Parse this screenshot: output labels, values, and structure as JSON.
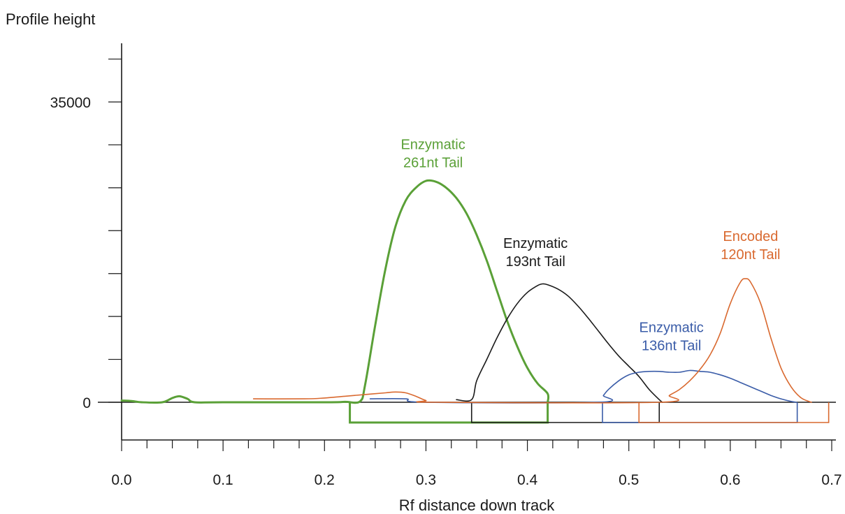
{
  "chart_data": {
    "type": "line",
    "xlabel": "Rf distance down track",
    "ylabel": "Profile height",
    "xlim": [
      0.0,
      0.7
    ],
    "ylim": [
      -4500,
      42000
    ],
    "x_ticks": [
      "0.0",
      "0.1",
      "0.2",
      "0.3",
      "0.4",
      "0.5",
      "0.6",
      "0.7"
    ],
    "y_ticks": [
      "0",
      "35000"
    ],
    "grid": false,
    "series": [
      {
        "color": "#5aa037",
        "width": 3,
        "points": [
          [
            0.0,
            200
          ],
          [
            0.01,
            150
          ],
          [
            0.02,
            0
          ],
          [
            0.04,
            0
          ],
          [
            0.05,
            500
          ],
          [
            0.057,
            700
          ],
          [
            0.065,
            400
          ],
          [
            0.072,
            0
          ],
          [
            0.1,
            0
          ],
          [
            0.2,
            0
          ],
          [
            0.22,
            50
          ],
          [
            0.235,
            100
          ],
          [
            0.24,
            2000
          ],
          [
            0.25,
            9000
          ],
          [
            0.26,
            15500
          ],
          [
            0.27,
            20500
          ],
          [
            0.28,
            23500
          ],
          [
            0.29,
            25000
          ],
          [
            0.3,
            25800
          ],
          [
            0.31,
            25700
          ],
          [
            0.32,
            25000
          ],
          [
            0.33,
            23800
          ],
          [
            0.34,
            22000
          ],
          [
            0.35,
            19500
          ],
          [
            0.36,
            16500
          ],
          [
            0.37,
            13000
          ],
          [
            0.38,
            9500
          ],
          [
            0.39,
            6500
          ],
          [
            0.4,
            4000
          ],
          [
            0.41,
            2200
          ],
          [
            0.42,
            1000
          ],
          [
            0.42,
            0
          ]
        ]
      },
      {
        "color": "#1a1a1a",
        "width": 1.6,
        "points": [
          [
            0.33,
            300
          ],
          [
            0.345,
            300
          ],
          [
            0.35,
            2500
          ],
          [
            0.36,
            5000
          ],
          [
            0.37,
            7500
          ],
          [
            0.38,
            9700
          ],
          [
            0.39,
            11500
          ],
          [
            0.4,
            12800
          ],
          [
            0.41,
            13600
          ],
          [
            0.415,
            13800
          ],
          [
            0.42,
            13700
          ],
          [
            0.43,
            13200
          ],
          [
            0.44,
            12400
          ],
          [
            0.45,
            11200
          ],
          [
            0.46,
            9800
          ],
          [
            0.47,
            8300
          ],
          [
            0.48,
            6800
          ],
          [
            0.49,
            5400
          ],
          [
            0.5,
            4200
          ],
          [
            0.51,
            3000
          ],
          [
            0.52,
            1500
          ],
          [
            0.53,
            300
          ],
          [
            0.533,
            0
          ]
        ]
      },
      {
        "color": "#3a5ca8",
        "width": 1.6,
        "points": [
          [
            0.245,
            400
          ],
          [
            0.28,
            400
          ],
          [
            0.3,
            0
          ],
          [
            0.47,
            0
          ],
          [
            0.475,
            800
          ],
          [
            0.48,
            1500
          ],
          [
            0.49,
            2500
          ],
          [
            0.5,
            3200
          ],
          [
            0.51,
            3500
          ],
          [
            0.52,
            3600
          ],
          [
            0.53,
            3600
          ],
          [
            0.54,
            3500
          ],
          [
            0.55,
            3500
          ],
          [
            0.56,
            3700
          ],
          [
            0.57,
            3600
          ],
          [
            0.58,
            3500
          ],
          [
            0.59,
            3200
          ],
          [
            0.6,
            2800
          ],
          [
            0.61,
            2300
          ],
          [
            0.62,
            1800
          ],
          [
            0.63,
            1300
          ],
          [
            0.64,
            800
          ],
          [
            0.65,
            400
          ],
          [
            0.66,
            100
          ],
          [
            0.665,
            0
          ]
        ]
      },
      {
        "color": "#d9692f",
        "width": 1.6,
        "points": [
          [
            0.13,
            400
          ],
          [
            0.18,
            400
          ],
          [
            0.2,
            500
          ],
          [
            0.22,
            700
          ],
          [
            0.24,
            900
          ],
          [
            0.26,
            1100
          ],
          [
            0.27,
            1200
          ],
          [
            0.28,
            1100
          ],
          [
            0.29,
            700
          ],
          [
            0.3,
            200
          ],
          [
            0.31,
            0
          ],
          [
            0.53,
            0
          ],
          [
            0.54,
            800
          ],
          [
            0.55,
            1500
          ],
          [
            0.56,
            2500
          ],
          [
            0.57,
            3800
          ],
          [
            0.58,
            5500
          ],
          [
            0.59,
            8000
          ],
          [
            0.6,
            11500
          ],
          [
            0.61,
            14000
          ],
          [
            0.615,
            14400
          ],
          [
            0.62,
            14000
          ],
          [
            0.63,
            11500
          ],
          [
            0.64,
            7500
          ],
          [
            0.65,
            4000
          ],
          [
            0.66,
            1800
          ],
          [
            0.67,
            500
          ],
          [
            0.68,
            0
          ]
        ]
      }
    ],
    "intervals": [
      {
        "color": "#5aa037",
        "width": 3,
        "x": [
          0.225,
          0.42
        ]
      },
      {
        "color": "#1a1a1a",
        "width": 1.6,
        "x": [
          0.345,
          0.53
        ]
      },
      {
        "color": "#3a5ca8",
        "width": 1.6,
        "x": [
          0.474,
          0.666
        ]
      },
      {
        "color": "#d9692f",
        "width": 1.6,
        "x": [
          0.51,
          0.697
        ]
      }
    ],
    "annotations": [
      {
        "color": "#5aa037",
        "x": 0.307,
        "y": 29500,
        "lines": [
          "Enzymatic",
          "261nt Tail"
        ]
      },
      {
        "color": "#1a1a1a",
        "x": 0.408,
        "y": 18000,
        "lines": [
          "Enzymatic",
          "193nt Tail"
        ]
      },
      {
        "color": "#3a5ca8",
        "x": 0.542,
        "y": 8200,
        "lines": [
          "Enzymatic",
          "136nt Tail"
        ]
      },
      {
        "color": "#d9692f",
        "x": 0.62,
        "y": 18800,
        "lines": [
          "Encoded",
          "120nt Tail"
        ]
      }
    ]
  }
}
